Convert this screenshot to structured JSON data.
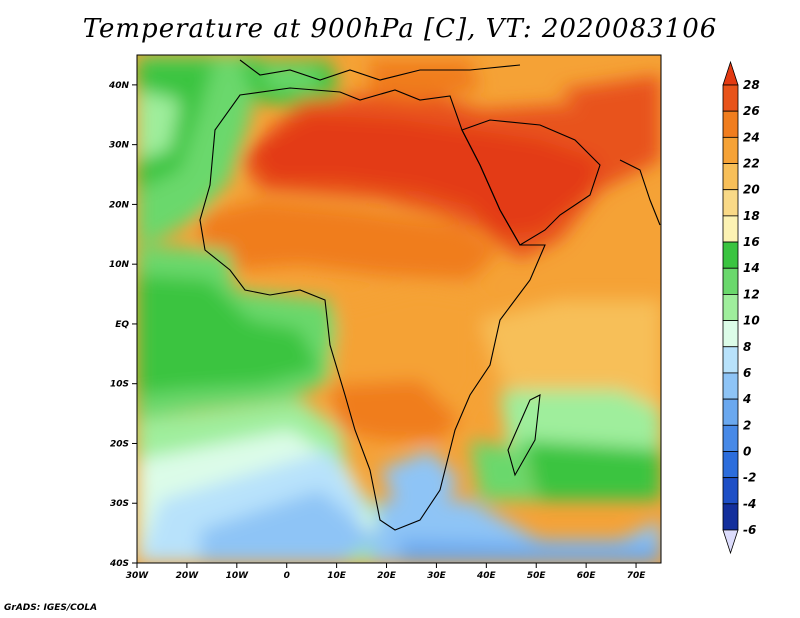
{
  "title": "Temperature at 900hPa [C], VT: 2020083106",
  "credit": "GrADS: IGES/COLA",
  "map": {
    "lon_labels": [
      "30W",
      "20W",
      "10W",
      "0",
      "10E",
      "20E",
      "30E",
      "40E",
      "50E",
      "60E",
      "70E"
    ],
    "lat_labels": [
      "40N",
      "30N",
      "20N",
      "10N",
      "EQ",
      "10S",
      "20S",
      "30S",
      "40S"
    ],
    "lon_range": [
      -30,
      75
    ],
    "lat_range": [
      -40,
      45
    ]
  },
  "colorbar": {
    "labels": [
      "28",
      "26",
      "24",
      "22",
      "20",
      "18",
      "16",
      "14",
      "12",
      "10",
      "8",
      "6",
      "4",
      "2",
      "0",
      "-2",
      "-4",
      "-6"
    ],
    "colors": [
      "#e33a12",
      "#e8531a",
      "#f07d1e",
      "#f5a236",
      "#f7bf59",
      "#f9d987",
      "#fcf2b3",
      "#3ac440",
      "#6ad86c",
      "#9fee9c",
      "#dcfce8",
      "#b8e2fb",
      "#8ec4f6",
      "#6aa8ef",
      "#4789e7",
      "#2c6ddc",
      "#1e4fc6",
      "#132f9c",
      "#071b6a"
    ]
  }
}
